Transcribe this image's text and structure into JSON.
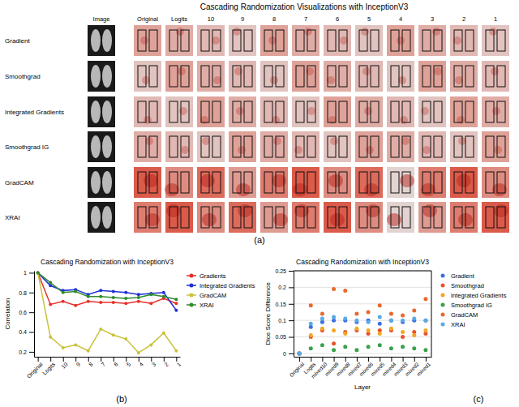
{
  "figure_a": {
    "title": "Cascading Randomization Visualizations with InceptionV3",
    "columns": [
      "Image",
      "Original",
      "Logits",
      "10",
      "9",
      "8",
      "7",
      "6",
      "5",
      "4",
      "3",
      "2",
      "1"
    ],
    "rows": [
      "Gradient",
      "Smoothgrad",
      "Integrated Gradients",
      "Smoothgrad IG",
      "GradCAM",
      "XRAI"
    ]
  },
  "panel_labels": [
    "(a)",
    "(b)",
    "(c)"
  ],
  "chart_data": [
    {
      "type": "line",
      "title": "Cascading Randomization with InceptionV3",
      "y_label": "Correlation",
      "categories": [
        "Original",
        "Logits",
        "10",
        "9",
        "8",
        "7",
        "6",
        "5",
        "4",
        "3",
        "2",
        "1"
      ],
      "ylim": [
        0.15,
        1.02
      ],
      "yticks": [
        0.2,
        0.4,
        0.6,
        0.8,
        1
      ],
      "grid": false,
      "legend": "right",
      "series": [
        {
          "name": "Gradients",
          "color": "#e8302a",
          "marker": "circle",
          "values": [
            1,
            0.68,
            0.71,
            0.67,
            0.71,
            0.7,
            0.7,
            0.69,
            0.71,
            0.69,
            0.74,
            0.69
          ]
        },
        {
          "name": "Integrated Gradients",
          "color": "#1f2fd6",
          "marker": "circle",
          "values": [
            1,
            0.87,
            0.82,
            0.83,
            0.78,
            0.82,
            0.81,
            0.8,
            0.78,
            0.79,
            0.8,
            0.62
          ]
        },
        {
          "name": "GradCAM",
          "color": "#c9c23a",
          "marker": "circle",
          "values": [
            1,
            0.35,
            0.24,
            0.27,
            0.21,
            0.43,
            0.37,
            0.33,
            0.19,
            0.27,
            0.39,
            0.21
          ]
        },
        {
          "name": "XRAI",
          "color": "#2e8b2e",
          "marker": "circle",
          "values": [
            1,
            0.9,
            0.8,
            0.81,
            0.76,
            0.76,
            0.75,
            0.74,
            0.75,
            0.78,
            0.76,
            0.73
          ]
        }
      ]
    },
    {
      "type": "scatter",
      "title": "Cascading Randomization with InceptionV3",
      "x_label": "Layer",
      "y_label": "Dice Score Difference",
      "categories": [
        "Original",
        "Logits",
        "mixed10",
        "mixed9",
        "mixed8",
        "mixed7",
        "mixed6",
        "mixed5",
        "mixed4",
        "mixed3",
        "mixed2",
        "mixed1"
      ],
      "ylim": [
        -0.01,
        0.25
      ],
      "yticks": [
        0,
        0.05,
        0.1,
        0.15,
        0.2,
        0.25
      ],
      "grid": true,
      "legend": "right",
      "series": [
        {
          "name": "Gradient",
          "color": "#3b6fe0",
          "marker": "circle",
          "values": [
            0,
            0.08,
            0.095,
            0.1,
            0.1,
            0.095,
            0.1,
            0.09,
            0.1,
            0.095,
            0.1,
            0.1
          ]
        },
        {
          "name": "Smoothgrad",
          "color": "#e8532b",
          "marker": "circle",
          "values": [
            0,
            0.05,
            0.07,
            0.03,
            0.065,
            0.07,
            0.06,
            0.07,
            0.07,
            0.05,
            0.065,
            0.06
          ]
        },
        {
          "name": "Integrated Gradients",
          "color": "#f5a623",
          "marker": "circle",
          "values": [
            0,
            0.055,
            0.075,
            0.07,
            0.06,
            0.075,
            0.07,
            0.06,
            0.075,
            0.065,
            0.055,
            0.07
          ]
        },
        {
          "name": "Smoothgrad IG",
          "color": "#3aa04a",
          "marker": "circle",
          "values": [
            0,
            0.015,
            0.025,
            0.01,
            0.02,
            0.01,
            0.02,
            0.025,
            0.015,
            0.02,
            0.015,
            0.01
          ]
        },
        {
          "name": "GradCAM",
          "color": "#e8692b",
          "marker": "circle",
          "values": [
            0,
            0.145,
            0.12,
            0.195,
            0.19,
            0.12,
            0.125,
            0.145,
            0.12,
            0.115,
            0.13,
            0.165
          ]
        },
        {
          "name": "XRAI",
          "color": "#5aa9e6",
          "marker": "circle",
          "values": [
            0,
            0.09,
            0.105,
            0.11,
            0.105,
            0.1,
            0.095,
            0.11,
            0.1,
            0.1,
            0.105,
            0.1
          ]
        }
      ]
    }
  ]
}
